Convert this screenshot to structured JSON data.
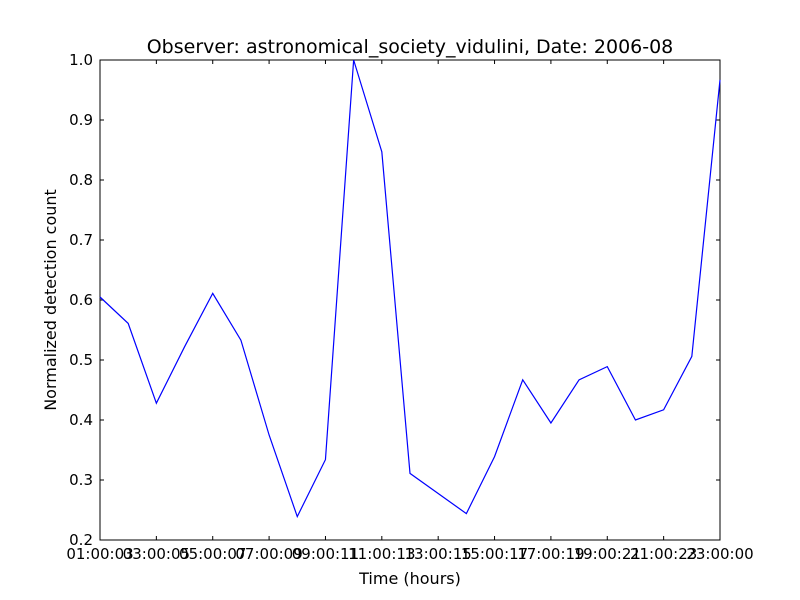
{
  "chart_data": {
    "type": "line",
    "title": "Observer: astronomical_society_vidulini, Date: 2006-08",
    "xlabel": "Time (hours)",
    "ylabel": "Normalized detection count",
    "xlim": [
      1,
      23
    ],
    "ylim": [
      0.2,
      1.0
    ],
    "grid": false,
    "x_ticks": [
      {
        "x": 1,
        "label": "01:00:03"
      },
      {
        "x": 3,
        "label": "03:00:05"
      },
      {
        "x": 5,
        "label": "05:00:07"
      },
      {
        "x": 7,
        "label": "07:00:09"
      },
      {
        "x": 9,
        "label": "09:00:11"
      },
      {
        "x": 11,
        "label": "11:00:13"
      },
      {
        "x": 13,
        "label": "13:00:15"
      },
      {
        "x": 15,
        "label": "15:00:17"
      },
      {
        "x": 17,
        "label": "17:00:19"
      },
      {
        "x": 19,
        "label": "19:00:21"
      },
      {
        "x": 21,
        "label": "21:00:23"
      },
      {
        "x": 23,
        "label": "23:00:00"
      }
    ],
    "y_ticks": [
      {
        "y": 0.2,
        "label": "0.2"
      },
      {
        "y": 0.3,
        "label": "0.3"
      },
      {
        "y": 0.4,
        "label": "0.4"
      },
      {
        "y": 0.5,
        "label": "0.5"
      },
      {
        "y": 0.6,
        "label": "0.6"
      },
      {
        "y": 0.7,
        "label": "0.7"
      },
      {
        "y": 0.8,
        "label": "0.8"
      },
      {
        "y": 0.9,
        "label": "0.9"
      },
      {
        "y": 1.0,
        "label": "1.0"
      }
    ],
    "series": [
      {
        "color": "#0000ff",
        "x": [
          1,
          2,
          3,
          4,
          5,
          6,
          7,
          8,
          9,
          10,
          11,
          12,
          14,
          15,
          16,
          17,
          18,
          19,
          20,
          21,
          22,
          23
        ],
        "y": [
          0.605,
          0.561,
          0.428,
          0.522,
          0.611,
          0.533,
          0.375,
          0.239,
          0.334,
          1.0,
          0.847,
          0.311,
          0.244,
          0.339,
          0.467,
          0.395,
          0.467,
          0.489,
          0.4,
          0.417,
          0.506,
          0.967
        ]
      }
    ]
  }
}
